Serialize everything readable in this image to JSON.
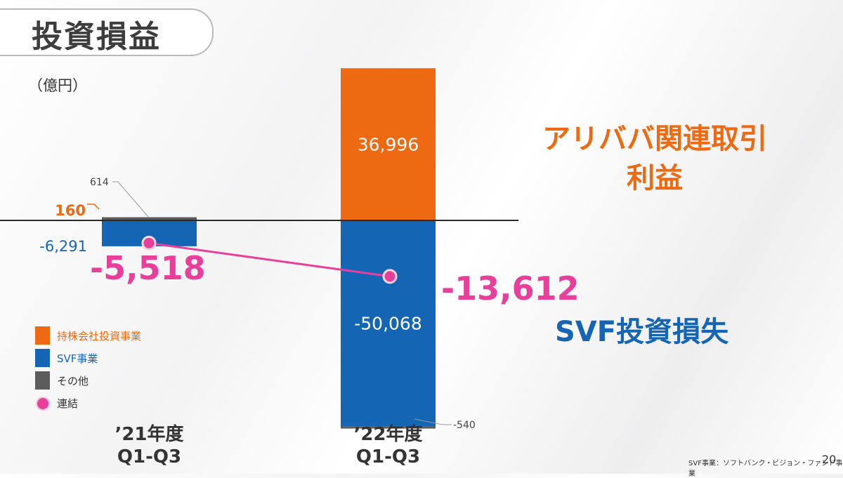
{
  "header": {
    "title": "投資損益"
  },
  "unit_label": "（億円）",
  "notes": {
    "alibaba_line1": "アリババ関連取引",
    "alibaba_line2": "利益",
    "svf": "SVF投資損失"
  },
  "legend": {
    "items": [
      {
        "label": "持株会社投資事業",
        "color": "#ee6a12",
        "label_color": "#ee6a12",
        "kind": "bar"
      },
      {
        "label": "SVF事業",
        "color": "#1565b5",
        "label_color": "#1565b5",
        "kind": "bar"
      },
      {
        "label": "その他",
        "color": "#5c5c5c",
        "label_color": "#333333",
        "kind": "bar"
      },
      {
        "label": "連結",
        "color": "#e8409a",
        "label_color": "#333333",
        "kind": "dot"
      }
    ]
  },
  "footer": {
    "footnote": "SVF事業：ソフトバンク・ビジョン・ファンド事業",
    "page_number": "20"
  },
  "chart_data": {
    "type": "bar",
    "stacked": true,
    "categories": [
      "'21年度\nQ1-Q3",
      "'22年度\nQ1-Q3"
    ],
    "category_lines": [
      [
        "’21年度",
        "Q1-Q3"
      ],
      [
        "’22年度",
        "Q1-Q3"
      ]
    ],
    "series": [
      {
        "name": "持株会社投資事業",
        "values": [
          160,
          36996
        ],
        "labels": [
          "160",
          "36,996"
        ],
        "color": "#ee6a12"
      },
      {
        "name": "SVF事業",
        "values": [
          -6291,
          -50068
        ],
        "labels": [
          "-6,291",
          "-50,068"
        ],
        "color": "#1565b5"
      },
      {
        "name": "その他",
        "values": [
          614,
          -540
        ],
        "labels": [
          "614",
          "-540"
        ],
        "color": "#5c5c5c"
      }
    ],
    "line_series": {
      "name": "連結",
      "values": [
        -5518,
        -13612
      ],
      "labels": [
        "-5,518",
        "-13,612"
      ],
      "color": "#e8409a"
    },
    "ylim": [
      -54000,
      40000
    ]
  }
}
